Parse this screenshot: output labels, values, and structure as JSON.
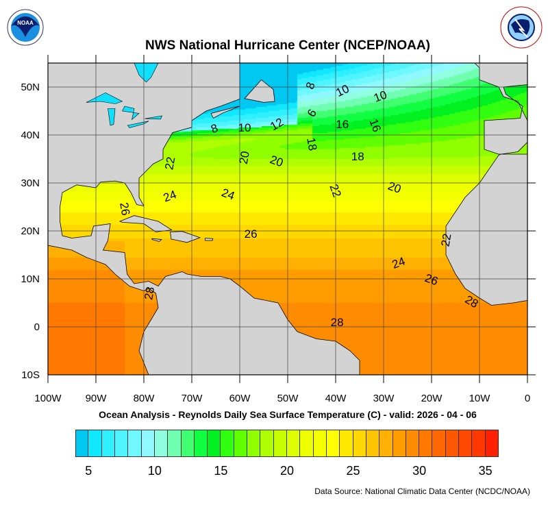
{
  "header": {
    "title": "NWS National Hurricane Center (NCEP/NOAA)",
    "left_logo": {
      "name": "noaa-logo",
      "text": "NOAA"
    },
    "right_logo": {
      "name": "nws-logo",
      "text": "NATIONAL WEATHER SERVICE"
    }
  },
  "map": {
    "type": "sea-surface-temperature-map",
    "lon_range": [
      -100,
      0
    ],
    "lat_range": [
      -10,
      55
    ],
    "grid": true,
    "land_color": "#d3d3d3",
    "lon_ticks": [
      "100W",
      "90W",
      "80W",
      "70W",
      "60W",
      "50W",
      "40W",
      "30W",
      "20W",
      "10W",
      "0"
    ],
    "lat_ticks": [
      "50N",
      "40N",
      "30N",
      "20N",
      "10N",
      "0",
      "10S"
    ],
    "contour_labels": [
      "8",
      "10",
      "10",
      "8",
      "10",
      "12",
      "6",
      "16",
      "16",
      "18",
      "18",
      "20",
      "20",
      "22",
      "20",
      "22",
      "24",
      "24",
      "26",
      "26",
      "22",
      "24",
      "26",
      "28",
      "28",
      "28"
    ]
  },
  "subtitle": "Ocean Analysis - Reynolds Daily Sea Surface Temperature (C) - valid: 2026 - 04 - 06",
  "colorbar": {
    "min": 4,
    "max": 36,
    "tick_labels": [
      "5",
      "10",
      "15",
      "20",
      "25",
      "30",
      "35"
    ],
    "colors": [
      "#00c8f0",
      "#10e8ff",
      "#30f0ff",
      "#50f4ff",
      "#70f8ff",
      "#90f8ff",
      "#90ffe0",
      "#70ffb0",
      "#40ff70",
      "#10ff40",
      "#00f020",
      "#30ff10",
      "#60ff00",
      "#90ff00",
      "#b0ff00",
      "#c8ff00",
      "#ddff00",
      "#eeff00",
      "#f4ff00",
      "#ffff00",
      "#ffe800",
      "#ffd800",
      "#ffc400",
      "#ffb000",
      "#ff9c00",
      "#ff8c00",
      "#ff7800",
      "#ff6800",
      "#ff5800",
      "#ff4800",
      "#ff3800",
      "#ff2000"
    ]
  },
  "footer": {
    "source": "Data Source: National Climatic Data Center (NCDC/NOAA)"
  }
}
